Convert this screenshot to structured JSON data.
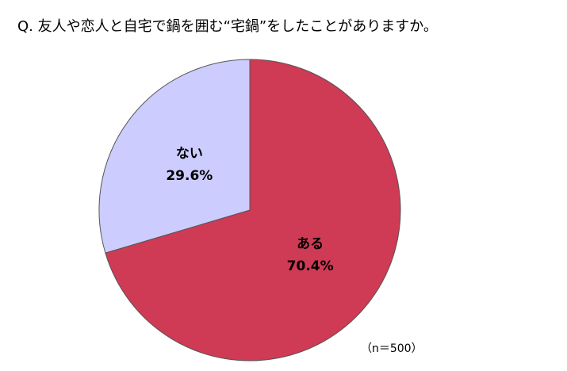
{
  "chart_data": {
    "type": "pie",
    "title": "Q. 友人や恋人と自宅で鍋を囲む“宅鍋”をしたことがありますか。",
    "categories": [
      "ある",
      "ない"
    ],
    "values": [
      70.4,
      29.6
    ],
    "value_labels": [
      "70.4%",
      "29.6%"
    ],
    "colors": [
      "#cf3a55",
      "#ccccff"
    ],
    "note": "（n＝500）"
  }
}
